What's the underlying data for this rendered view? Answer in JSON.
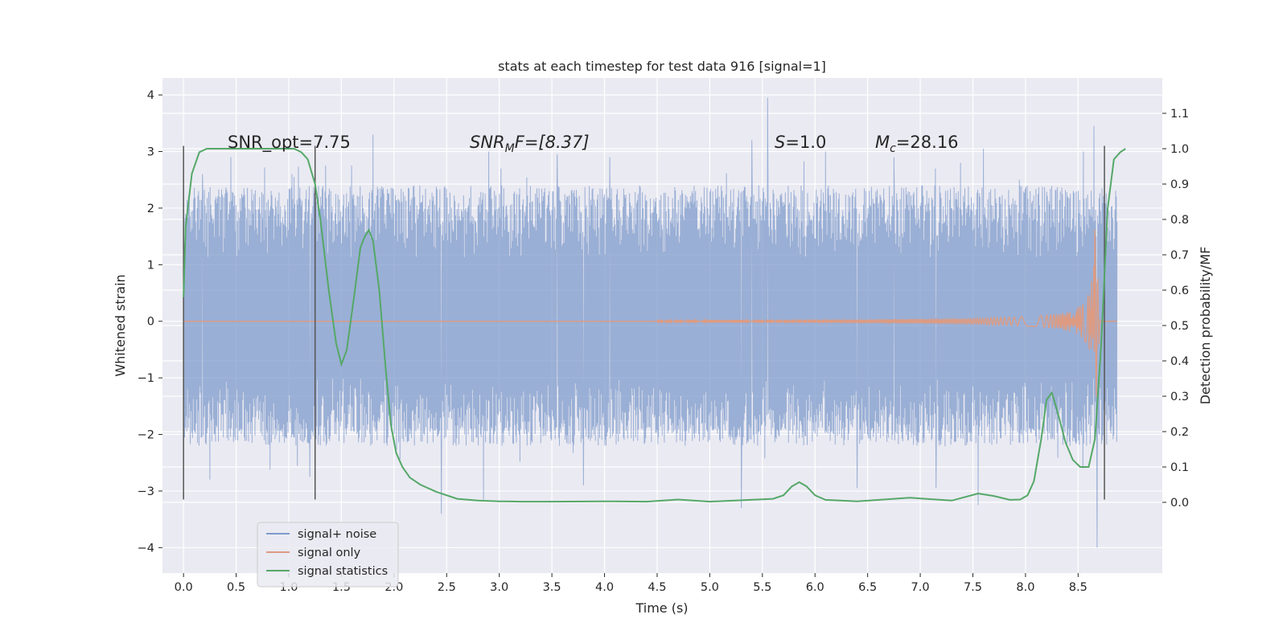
{
  "chart_data": {
    "type": "line",
    "title": "stats at each timestep for test data 916 [signal=1]",
    "xlabel": "Time (s)",
    "ylabel": "Whitened strain",
    "y2label": "Detection probability/MF",
    "xlim": [
      -0.2,
      9.3
    ],
    "ylim": [
      -4.45,
      4.3
    ],
    "y2lim": [
      -0.2,
      1.2
    ],
    "xticks": [
      0.0,
      0.5,
      1.0,
      1.5,
      2.0,
      2.5,
      3.0,
      3.5,
      4.0,
      4.5,
      5.0,
      5.5,
      6.0,
      6.5,
      7.0,
      7.5,
      8.0,
      8.5
    ],
    "yticks": [
      -4,
      -3,
      -2,
      -1,
      0,
      1,
      2,
      3,
      4
    ],
    "y2ticks": [
      0.0,
      0.1,
      0.2,
      0.3,
      0.4,
      0.5,
      0.6,
      0.7,
      0.8,
      0.9,
      1.0,
      1.1
    ],
    "xtick_labels": [
      "0.0",
      "0.5",
      "1.0",
      "1.5",
      "2.0",
      "2.5",
      "3.0",
      "3.5",
      "4.0",
      "4.5",
      "5.0",
      "5.5",
      "6.0",
      "6.5",
      "7.0",
      "7.5",
      "8.0",
      "8.5"
    ],
    "ytick_labels": [
      "−4",
      "−3",
      "−2",
      "−1",
      "0",
      "1",
      "2",
      "3",
      "4"
    ],
    "y2tick_labels": [
      "0.0",
      "0.1",
      "0.2",
      "0.3",
      "0.4",
      "0.5",
      "0.6",
      "0.7",
      "0.8",
      "0.9",
      "1.0",
      "1.1"
    ],
    "grid": true,
    "annotations": {
      "snr_opt": "SNR_opt=7.75",
      "snr_mf_italic": "SNR",
      "snr_mf_sub": "M",
      "snr_mf_rest": "F=[8.37]",
      "s_italic": "S",
      "s_rest": "=1.0",
      "mc_italic": "M",
      "mc_sub": "c",
      "mc_rest": "=28.16"
    },
    "vlines": [
      {
        "x": 0.0,
        "ymin": -3.15,
        "ymax": 3.1
      },
      {
        "x": 1.25,
        "ymin": -3.15,
        "ymax": 3.1
      },
      {
        "x": 8.75,
        "ymin": -3.15,
        "ymax": 3.1
      }
    ],
    "noise": {
      "name": "signal+ noise",
      "color": "#7f9bcb",
      "x_start": 0.0,
      "x_end": 8.87,
      "envelope_top": 2.4,
      "envelope_bottom": -2.2,
      "spikes": [
        {
          "x": 0.18,
          "y": 2.6
        },
        {
          "x": 0.45,
          "y": 2.9
        },
        {
          "x": 1.05,
          "y": 2.55
        },
        {
          "x": 1.35,
          "y": 2.75
        },
        {
          "x": 1.8,
          "y": 3.3
        },
        {
          "x": 2.9,
          "y": 3.0
        },
        {
          "x": 3.55,
          "y": 2.95
        },
        {
          "x": 4.05,
          "y": 2.9
        },
        {
          "x": 5.4,
          "y": 3.2
        },
        {
          "x": 5.55,
          "y": 3.95
        },
        {
          "x": 6.1,
          "y": 3.0
        },
        {
          "x": 6.75,
          "y": 2.9
        },
        {
          "x": 7.6,
          "y": 3.05
        },
        {
          "x": 8.55,
          "y": 3.0
        },
        {
          "x": 8.65,
          "y": 3.45
        },
        {
          "x": 0.25,
          "y": -2.8
        },
        {
          "x": 1.2,
          "y": -2.75
        },
        {
          "x": 2.45,
          "y": -3.4
        },
        {
          "x": 2.85,
          "y": -3.15
        },
        {
          "x": 3.8,
          "y": -2.9
        },
        {
          "x": 5.3,
          "y": -3.3
        },
        {
          "x": 6.4,
          "y": -2.95
        },
        {
          "x": 7.15,
          "y": -2.95
        },
        {
          "x": 7.55,
          "y": -3.25
        },
        {
          "x": 8.68,
          "y": -4.0
        }
      ]
    },
    "signal": {
      "name": "signal only",
      "color": "#dd9b82",
      "chirp_start": 4.5,
      "merger_time": 8.66,
      "peak_amplitude": 1.8
    },
    "statistics": {
      "name": "signal statistics",
      "color": "#55a868",
      "x": [
        0.0,
        0.02,
        0.08,
        0.15,
        0.22,
        0.35,
        0.5,
        0.7,
        0.9,
        1.05,
        1.12,
        1.18,
        1.25,
        1.3,
        1.38,
        1.45,
        1.5,
        1.55,
        1.62,
        1.68,
        1.72,
        1.76,
        1.8,
        1.86,
        1.92,
        1.97,
        2.02,
        2.08,
        2.15,
        2.25,
        2.4,
        2.6,
        2.8,
        3.0,
        3.2,
        3.5,
        4.0,
        4.4,
        4.7,
        5.0,
        5.3,
        5.6,
        5.7,
        5.78,
        5.85,
        5.92,
        6.0,
        6.1,
        6.4,
        6.9,
        7.3,
        7.55,
        7.7,
        7.85,
        7.95,
        8.02,
        8.08,
        8.15,
        8.2,
        8.25,
        8.3,
        8.38,
        8.45,
        8.52,
        8.6,
        8.66,
        8.72,
        8.78,
        8.84,
        8.9,
        8.95
      ],
      "values": [
        0.58,
        0.78,
        0.93,
        0.99,
        1.0,
        1.0,
        1.0,
        1.0,
        1.0,
        1.0,
        0.99,
        0.97,
        0.9,
        0.8,
        0.6,
        0.45,
        0.39,
        0.43,
        0.58,
        0.72,
        0.75,
        0.77,
        0.74,
        0.6,
        0.38,
        0.22,
        0.14,
        0.1,
        0.07,
        0.05,
        0.03,
        0.01,
        0.005,
        0.003,
        0.002,
        0.002,
        0.003,
        0.002,
        0.008,
        0.002,
        0.006,
        0.01,
        0.02,
        0.045,
        0.057,
        0.045,
        0.02,
        0.007,
        0.003,
        0.013,
        0.005,
        0.025,
        0.018,
        0.007,
        0.008,
        0.02,
        0.06,
        0.18,
        0.29,
        0.31,
        0.26,
        0.17,
        0.12,
        0.1,
        0.1,
        0.18,
        0.45,
        0.83,
        0.97,
        0.99,
        1.0
      ]
    },
    "legend": {
      "placement": "lower-left",
      "entries": [
        "signal+ noise",
        "signal only",
        "signal statistics"
      ]
    }
  }
}
